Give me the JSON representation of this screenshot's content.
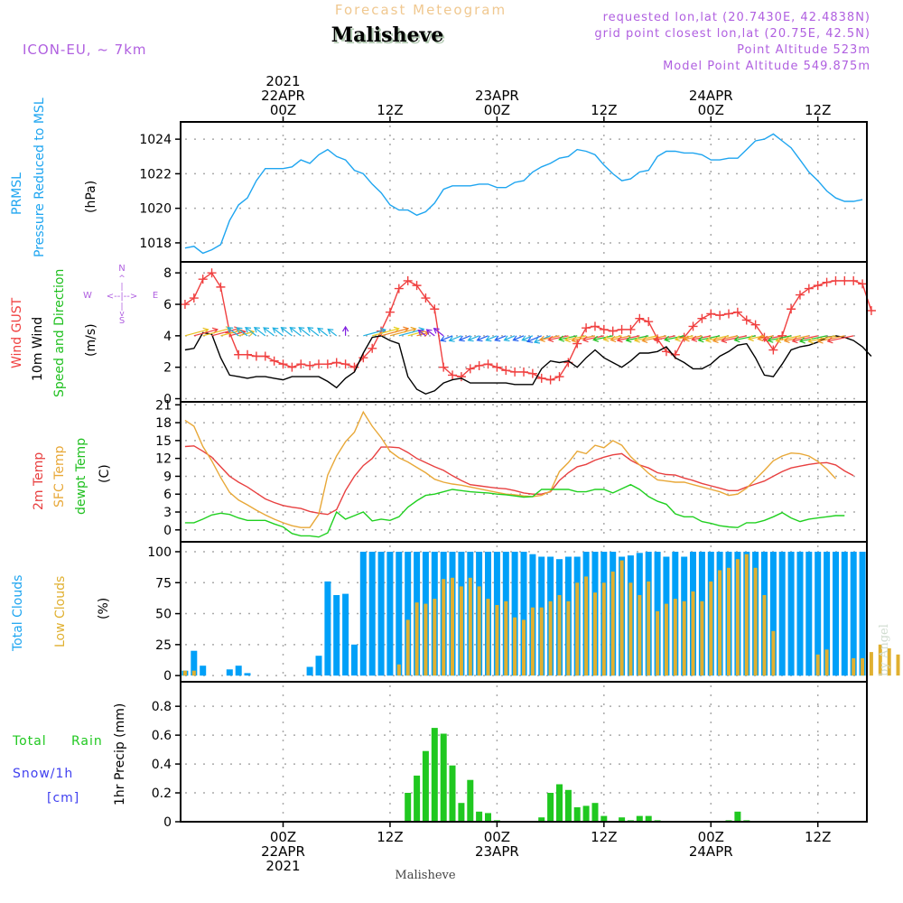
{
  "header": {
    "super_title": "Forecast Meteogram",
    "location": "Malisheve",
    "model": "ICON-EU, ~ 7km",
    "requested": "requested lon,lat (20.7430E, 42.4838N)",
    "grid_point": "grid point closest lon,lat (20.75E, 42.5N)",
    "point_altitude": "Point Altitude 523m",
    "model_altitude": "Model Point Altitude 549.875m",
    "footer_location": "Malisheve",
    "credit": "by Angel"
  },
  "colors": {
    "pressure": "#1ea5f0",
    "gust": "#f04040",
    "wind": "#000000",
    "temp2m": "#e84040",
    "sfc_temp": "#e8a838",
    "dewpt": "#20d020",
    "total_clouds": "#00a0f8",
    "low_clouds": "#e0b030",
    "rain": "#20c820",
    "snow": "#4040f0",
    "model_text": "#b060e0",
    "super_title": "#f0c890"
  },
  "time_axis": {
    "top_labels": [
      {
        "line1": "2021",
        "line2": "22APR",
        "line3": "00Z",
        "hour": 11
      },
      {
        "line1": "",
        "line2": "",
        "line3": "12Z",
        "hour": 23
      },
      {
        "line1": "",
        "line2": "23APR",
        "line3": "00Z",
        "hour": 35
      },
      {
        "line1": "",
        "line2": "",
        "line3": "12Z",
        "hour": 47
      },
      {
        "line1": "",
        "line2": "24APR",
        "line3": "00Z",
        "hour": 59
      },
      {
        "line1": "",
        "line2": "",
        "line3": "12Z",
        "hour": 71
      }
    ],
    "bottom_labels": [
      {
        "line1": "00Z",
        "line2": "22APR",
        "line3": "2021",
        "hour": 11
      },
      {
        "line1": "12Z",
        "line2": "",
        "line3": "",
        "hour": 23
      },
      {
        "line1": "00Z",
        "line2": "23APR",
        "line3": "",
        "hour": 35
      },
      {
        "line1": "12Z",
        "line2": "",
        "line3": "",
        "hour": 47
      },
      {
        "line1": "00Z",
        "line2": "24APR",
        "line3": "",
        "hour": 59
      },
      {
        "line1": "12Z",
        "line2": "",
        "line3": "",
        "hour": 71
      }
    ],
    "start": "21APR 13Z",
    "step_hours": 1,
    "xlim": [
      -0.5,
      76.5
    ]
  },
  "chart_data": [
    {
      "type": "line",
      "panel": "pressure",
      "ylabel_lines": [
        "PRMSL",
        "Pressure Reduced to MSL",
        "(hPa)"
      ],
      "ylim": [
        1016.9,
        1025.0
      ],
      "yticks": [
        1018,
        1020,
        1022,
        1024
      ],
      "grid": true,
      "series": [
        {
          "name": "PRMSL",
          "color_key": "pressure",
          "values": [
            1017.7,
            1017.8,
            1017.4,
            1017.6,
            1017.9,
            1019.3,
            1020.2,
            1020.6,
            1021.6,
            1022.3,
            1022.3,
            1022.3,
            1022.4,
            1022.8,
            1022.6,
            1023.1,
            1023.4,
            1023.0,
            1022.8,
            1022.2,
            1022.0,
            1021.4,
            1020.9,
            1020.2,
            1019.9,
            1019.9,
            1019.6,
            1019.8,
            1020.3,
            1021.1,
            1021.3,
            1021.3,
            1021.3,
            1021.4,
            1021.4,
            1021.2,
            1021.2,
            1021.5,
            1021.6,
            1022.1,
            1022.4,
            1022.6,
            1022.9,
            1023.0,
            1023.4,
            1023.3,
            1023.1,
            1022.5,
            1022.0,
            1021.6,
            1021.7,
            1022.1,
            1022.2,
            1023.0,
            1023.3,
            1023.3,
            1023.2,
            1023.2,
            1023.1,
            1022.8,
            1022.8,
            1022.9,
            1022.9,
            1023.4,
            1023.9,
            1024.0,
            1024.3,
            1023.9,
            1023.5,
            1022.8,
            1022.1,
            1021.6,
            1021.0,
            1020.6,
            1020.4,
            1020.4,
            1020.5
          ]
        }
      ]
    },
    {
      "type": "line",
      "panel": "wind",
      "ylabel_lines": [
        "Wind GUST",
        "10m Wind",
        "Speed and Direction",
        "(m/s)"
      ],
      "compass": {
        "n": "N",
        "s": "S",
        "w": "W",
        "e": "E"
      },
      "ylim": [
        -0.2,
        8.7
      ],
      "yticks": [
        0,
        2,
        4,
        6,
        8
      ],
      "grid": true,
      "series": [
        {
          "name": "Wind GUST",
          "color_key": "gust",
          "marker": "plus",
          "values": [
            6.0,
            6.4,
            7.6,
            8.0,
            7.1,
            4.2,
            2.8,
            2.8,
            2.7,
            2.7,
            2.4,
            2.2,
            2.0,
            2.2,
            2.1,
            2.2,
            2.2,
            2.3,
            2.2,
            2.0,
            2.6,
            3.2,
            4.3,
            5.5,
            7.0,
            7.5,
            7.2,
            6.4,
            5.7,
            2.0,
            1.5,
            1.4,
            1.9,
            2.1,
            2.2,
            2.0,
            1.8,
            1.7,
            1.7,
            1.6,
            1.3,
            1.2,
            1.4,
            2.3,
            3.5,
            4.5,
            4.6,
            4.4,
            4.3,
            4.4,
            4.4,
            5.1,
            4.9,
            3.8,
            3.0,
            2.8,
            3.9,
            4.6,
            5.1,
            5.4,
            5.3,
            5.4,
            5.5,
            5.0,
            4.7,
            3.9,
            3.1,
            4.0,
            5.7,
            6.6,
            7.0,
            7.2,
            7.4,
            7.5,
            7.5,
            7.5,
            7.3,
            5.6
          ]
        },
        {
          "name": "10m Wind",
          "color_key": "wind",
          "values": [
            3.1,
            3.2,
            4.2,
            4.1,
            2.6,
            1.5,
            1.4,
            1.3,
            1.4,
            1.4,
            1.3,
            1.2,
            1.4,
            1.4,
            1.4,
            1.4,
            1.1,
            0.7,
            1.3,
            1.7,
            2.9,
            3.9,
            4.0,
            3.7,
            3.5,
            1.4,
            0.6,
            0.3,
            0.5,
            1.0,
            1.2,
            1.3,
            1.0,
            1.0,
            1.0,
            1.0,
            1.0,
            0.9,
            0.9,
            0.9,
            1.9,
            2.4,
            2.3,
            2.4,
            2.0,
            2.6,
            3.1,
            2.6,
            2.3,
            2.0,
            2.4,
            2.9,
            2.9,
            3.0,
            3.3,
            2.6,
            2.3,
            1.9,
            1.9,
            2.2,
            2.7,
            3.0,
            3.4,
            3.5,
            2.6,
            1.5,
            1.4,
            2.2,
            3.1,
            3.3,
            3.4,
            3.6,
            3.9,
            4.0,
            3.9,
            3.7,
            3.3,
            2.7
          ]
        }
      ],
      "direction_arrows": {
        "baseline": 4.0,
        "segments": [
          {
            "from_hour": 0,
            "to_hour": 7,
            "direction": "NE",
            "colors": [
              "#e8c020",
              "#f04040"
            ]
          },
          {
            "from_hour": 6,
            "to_hour": 18,
            "direction": "NW",
            "colors": [
              "#20b0e0"
            ]
          },
          {
            "from_hour": 18,
            "to_hour": 19,
            "direction": "N",
            "colors": [
              "#8020e0"
            ]
          },
          {
            "from_hour": 20,
            "to_hour": 27,
            "direction": "NE",
            "colors": [
              "#20b0e0",
              "#e8d020",
              "#f08020",
              "#e8a020"
            ]
          },
          {
            "from_hour": 27,
            "to_hour": 30,
            "direction": "NW",
            "colors": [
              "#8020e0"
            ]
          },
          {
            "from_hour": 30,
            "to_hour": 42,
            "direction": "SW",
            "colors": [
              "#2060f0",
              "#20b0e0"
            ]
          },
          {
            "from_hour": 42,
            "to_hour": 76,
            "direction": "WSW",
            "colors": [
              "#20c020",
              "#e8c020",
              "#f09020",
              "#f04040"
            ]
          }
        ]
      }
    },
    {
      "type": "line",
      "panel": "temperature",
      "ylabel_lines": [
        "2m Temp",
        "SFC Temp",
        "dewpt Temp",
        "(C)"
      ],
      "ylim": [
        -2.0,
        21.5
      ],
      "yticks": [
        0,
        3,
        6,
        9,
        12,
        15,
        18,
        21
      ],
      "grid": true,
      "series": [
        {
          "name": "2m Temp",
          "color_key": "temp2m",
          "values": [
            14.0,
            14.1,
            13.2,
            12.2,
            10.6,
            9.0,
            8.0,
            7.2,
            6.2,
            5.2,
            4.6,
            4.1,
            3.8,
            3.6,
            3.1,
            2.8,
            2.6,
            3.4,
            6.6,
            9.0,
            10.8,
            12.0,
            13.9,
            13.9,
            13.8,
            13.0,
            12.0,
            11.3,
            10.6,
            10.0,
            9.1,
            8.3,
            7.6,
            7.4,
            7.2,
            7.0,
            6.9,
            6.6,
            6.2,
            6.0,
            6.0,
            6.4,
            8.3,
            9.6,
            10.6,
            11.0,
            11.7,
            12.2,
            12.6,
            12.8,
            11.7,
            10.9,
            10.4,
            9.6,
            9.3,
            9.2,
            8.7,
            8.3,
            7.8,
            7.4,
            7.0,
            6.6,
            6.6,
            7.2,
            7.7,
            8.2,
            9.0,
            9.8,
            10.4,
            10.7,
            11.0,
            11.2,
            11.3,
            10.9,
            9.9,
            9.1
          ]
        },
        {
          "name": "SFC Temp",
          "color_key": "sfc_temp",
          "values": [
            18.4,
            17.4,
            14.0,
            11.6,
            8.8,
            6.3,
            5.0,
            4.2,
            3.3,
            2.5,
            1.8,
            1.2,
            0.7,
            0.4,
            0.4,
            2.6,
            9.2,
            12.4,
            14.8,
            16.4,
            19.8,
            17.4,
            15.5,
            13.2,
            12.1,
            11.4,
            10.5,
            9.6,
            8.5,
            8.0,
            7.7,
            7.5,
            7.2,
            6.9,
            6.6,
            6.3,
            6.0,
            5.9,
            5.7,
            5.6,
            5.8,
            6.5,
            9.8,
            11.3,
            13.2,
            12.8,
            14.2,
            13.8,
            15.0,
            14.2,
            12.3,
            10.9,
            9.5,
            8.4,
            8.2,
            8.0,
            8.0,
            7.6,
            7.2,
            6.8,
            6.4,
            5.8,
            6.0,
            7.0,
            8.5,
            10.0,
            11.6,
            12.4,
            12.9,
            12.8,
            12.4,
            11.5,
            10.2,
            8.6
          ]
        },
        {
          "name": "dewpt Temp",
          "color_key": "dewpt",
          "values": [
            1.2,
            1.2,
            1.8,
            2.5,
            2.8,
            2.6,
            2.0,
            1.6,
            1.6,
            1.6,
            1.0,
            0.5,
            -0.6,
            -1.0,
            -1.0,
            -1.2,
            -0.5,
            3.0,
            1.8,
            2.4,
            3.0,
            1.5,
            1.8,
            1.6,
            2.2,
            3.8,
            4.9,
            5.8,
            6.0,
            6.4,
            6.8,
            6.6,
            6.4,
            6.3,
            6.2,
            6.0,
            5.9,
            5.7,
            5.5,
            5.6,
            6.8,
            6.8,
            6.8,
            6.8,
            6.4,
            6.4,
            6.8,
            6.8,
            6.2,
            6.9,
            7.6,
            6.8,
            5.6,
            4.8,
            4.3,
            2.7,
            2.2,
            2.2,
            1.4,
            1.1,
            0.7,
            0.5,
            0.4,
            1.2,
            1.2,
            1.6,
            2.2,
            2.9,
            2.0,
            1.4,
            1.8,
            2.0,
            2.2,
            2.4,
            2.4
          ]
        }
      ]
    },
    {
      "type": "bar",
      "panel": "clouds",
      "ylabel_lines": [
        "Total Clouds",
        "Low Clouds",
        "(%)"
      ],
      "ylim": [
        -5,
        108
      ],
      "yticks": [
        0,
        25,
        50,
        75,
        100
      ],
      "grid": true,
      "series": [
        {
          "name": "Total Clouds",
          "color_key": "total_clouds",
          "values": [
            4,
            20,
            8,
            0,
            0,
            5,
            8,
            2,
            0,
            0,
            0,
            0,
            0,
            0,
            7,
            16,
            76,
            65,
            66,
            25,
            100,
            100,
            100,
            100,
            100,
            100,
            100,
            100,
            100,
            100,
            100,
            100,
            100,
            100,
            100,
            100,
            100,
            100,
            100,
            98,
            96,
            96,
            94,
            96,
            96,
            100,
            100,
            100,
            100,
            96,
            97,
            99,
            100,
            100,
            96,
            100,
            96,
            100,
            100,
            100,
            100,
            100,
            100,
            100,
            100,
            100,
            100,
            100,
            100,
            100,
            100,
            100,
            100,
            100,
            100,
            100,
            100
          ]
        },
        {
          "name": "Low Clouds",
          "color_key": "low_clouds",
          "values": [
            4,
            4,
            0,
            0,
            0,
            0,
            0,
            0,
            0,
            0,
            0,
            0,
            0,
            0,
            0,
            0,
            0,
            0,
            0,
            0,
            0,
            0,
            0,
            0,
            9,
            45,
            59,
            58,
            62,
            78,
            79,
            72,
            79,
            72,
            62,
            57,
            60,
            47,
            45,
            55,
            55,
            60,
            65,
            60,
            75,
            80,
            67,
            75,
            84,
            93,
            75,
            65,
            76,
            52,
            58,
            62,
            60,
            68,
            60,
            76,
            85,
            87,
            94,
            98,
            87,
            65,
            36,
            0,
            0,
            0,
            0,
            17,
            21,
            0,
            0,
            14,
            14,
            19,
            25,
            22,
            17
          ]
        }
      ]
    },
    {
      "type": "bar",
      "panel": "precipitation",
      "ylabel_lines": [
        "1hr Precip (mm)"
      ],
      "legend": {
        "rain_a": "Total",
        "rain_b": "Rain",
        "snow": "Snow/1h",
        "snow_unit": "[cm]"
      },
      "ylim": [
        0,
        0.97
      ],
      "yticks": [
        0,
        0.2,
        0.4,
        0.6,
        0.8
      ],
      "ytick_labels": [
        "0",
        "0.2",
        "0.4",
        "0.6",
        "0.8"
      ],
      "grid": true,
      "series": [
        {
          "name": "Total Rain",
          "color_key": "rain",
          "values": [
            0,
            0,
            0,
            0,
            0,
            0,
            0,
            0,
            0,
            0,
            0,
            0,
            0,
            0,
            0,
            0,
            0,
            0,
            0,
            0,
            0,
            0,
            0,
            0,
            0,
            0.2,
            0.32,
            0.49,
            0.65,
            0.61,
            0.39,
            0.13,
            0.29,
            0.07,
            0.06,
            0.01,
            0,
            0,
            0,
            0,
            0.03,
            0.2,
            0.26,
            0.22,
            0.1,
            0.11,
            0.13,
            0.04,
            0,
            0.03,
            0.01,
            0.04,
            0.04,
            0.01,
            0,
            0,
            0,
            0,
            0,
            0,
            0,
            0.01,
            0.07,
            0.01,
            0,
            0,
            0,
            0,
            0,
            0,
            0,
            0,
            0,
            0,
            0,
            0,
            0
          ]
        }
      ]
    }
  ]
}
